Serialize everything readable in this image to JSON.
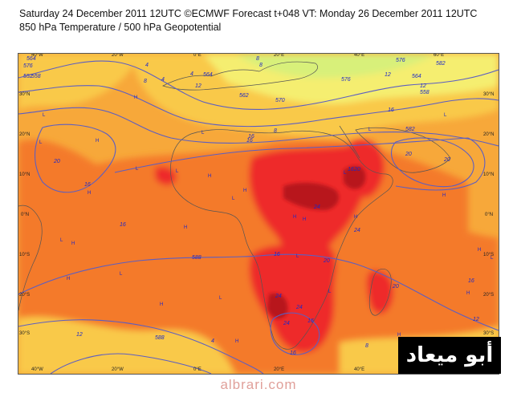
{
  "title_line1": "Saturday 24 December 2011 12UTC ©ECMWF Forecast t+048 VT: Monday 26 December 2011 12UTC",
  "title_line2": "850 hPa Temperature / 500 hPa Geopotential",
  "lon_labels": [
    "40°W",
    "20°W",
    "0°E",
    "20°E",
    "40°E",
    "60°E"
  ],
  "lat_labels": [
    "30°N",
    "20°N",
    "10°N",
    "0°N",
    "10°S",
    "20°S",
    "30°S"
  ],
  "colors": {
    "frame_bg": "#f7a83a",
    "warm_bg": "#f47a2a",
    "hot": "#ee2a2a",
    "hottest": "#b8141e",
    "mild": "#f9c94a",
    "cool": "#f5ee70",
    "cold": "#d8f07a",
    "coastline": "#555555",
    "contour": "#5c5ec2",
    "label_text": "#1c28c8",
    "logo_bg": "#000000",
    "logo_text": "#ffffff",
    "site_text": "#e0a09a"
  },
  "contour_labels": [
    "564",
    "576",
    "552",
    "558",
    "4",
    "8",
    "4",
    "4",
    "12",
    "8",
    "576",
    "582",
    "564",
    "570",
    "576",
    "562",
    "12",
    "16",
    "8",
    "582",
    "16",
    "20",
    "16",
    "16",
    "20",
    "20",
    "16",
    "20",
    "24",
    "24",
    "588",
    "16",
    "20",
    "24",
    "24",
    "16",
    "588",
    "20",
    "16",
    "12",
    "24",
    "16",
    "564",
    "12",
    "558",
    "8",
    "16",
    "12",
    "4",
    "8"
  ],
  "pressure_marks": [
    "L",
    "L",
    "L",
    "L",
    "H",
    "H",
    "L",
    "L",
    "H",
    "L",
    "H",
    "H",
    "L",
    "H",
    "L",
    "H",
    "L",
    "H",
    "H",
    "L",
    "H",
    "H",
    "L",
    "H",
    "H",
    "L",
    "L",
    "H",
    "H",
    "H",
    "L",
    "H"
  ],
  "logo_text": "أبو ميعاد",
  "site_text": "albrari.com"
}
